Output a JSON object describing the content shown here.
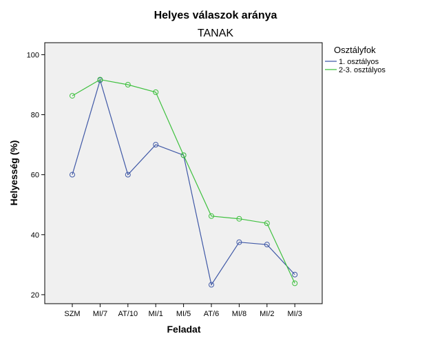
{
  "chart_data": {
    "type": "line",
    "title": "Helyes válaszok aránya",
    "subtitle": "TANAK",
    "xlabel": "Feladat",
    "ylabel": "Helyesség (%)",
    "categories": [
      "SZM",
      "MI/7",
      "AT/10",
      "MI/1",
      "MI/5",
      "AT/6",
      "MI/8",
      "MI/2",
      "MI/3"
    ],
    "ylim": [
      17,
      104
    ],
    "yticks": [
      20,
      40,
      60,
      80,
      100
    ],
    "grid": false,
    "legend": {
      "title": "Osztályfok",
      "placement": "right"
    },
    "series": [
      {
        "name": "1. osztályos",
        "color": "#3f58a6",
        "values": [
          60,
          91.5,
          60,
          70,
          66.5,
          23.3,
          37.5,
          36.7,
          26.7
        ]
      },
      {
        "name": "2-3. osztályos",
        "color": "#3ec03e",
        "values": [
          86.3,
          91.7,
          90,
          87.5,
          66.5,
          46.2,
          45.3,
          43.8,
          23.8
        ]
      }
    ]
  }
}
